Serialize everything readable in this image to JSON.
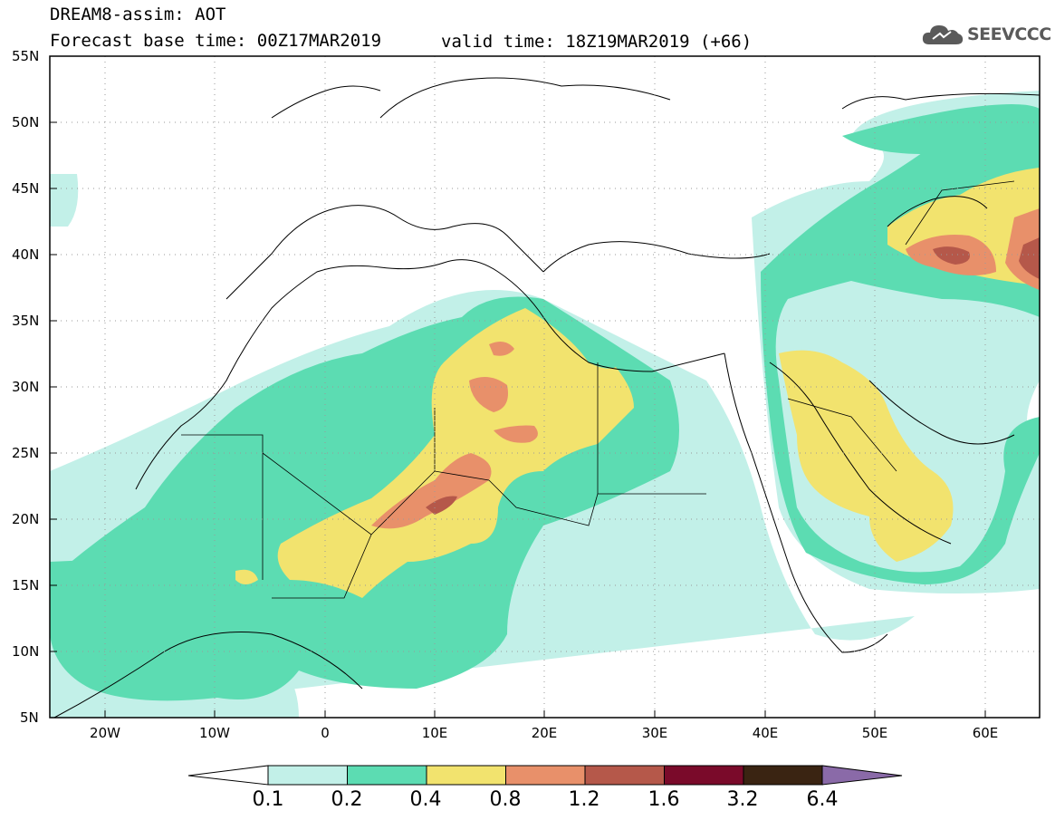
{
  "header": {
    "title": "DREAM8-assim: AOT",
    "base_time": "Forecast base time: 00Z17MAR2019",
    "valid_time": "valid time: 18Z19MAR2019 (+66)"
  },
  "logo": {
    "text": "SEEVCCC",
    "icon": "cloud-icon"
  },
  "map": {
    "lat_labels": [
      "55N",
      "50N",
      "45N",
      "40N",
      "35N",
      "30N",
      "25N",
      "20N",
      "15N",
      "10N",
      "5N"
    ],
    "lon_labels": [
      "20W",
      "10W",
      "0",
      "10E",
      "20E",
      "30E",
      "40E",
      "50E",
      "60E"
    ],
    "extent": {
      "lon": [
        -25,
        65
      ],
      "lat": [
        5,
        55
      ]
    }
  },
  "colorbar": {
    "labels": [
      "0.1",
      "0.2",
      "0.4",
      "0.8",
      "1.2",
      "1.6",
      "3.2",
      "6.4"
    ],
    "colors": [
      "#c2f0e8",
      "#5cdcb2",
      "#f2e36e",
      "#e8906a",
      "#b5584a",
      "#7a0a2a",
      "#3a2412",
      "#8a6aa8"
    ]
  }
}
